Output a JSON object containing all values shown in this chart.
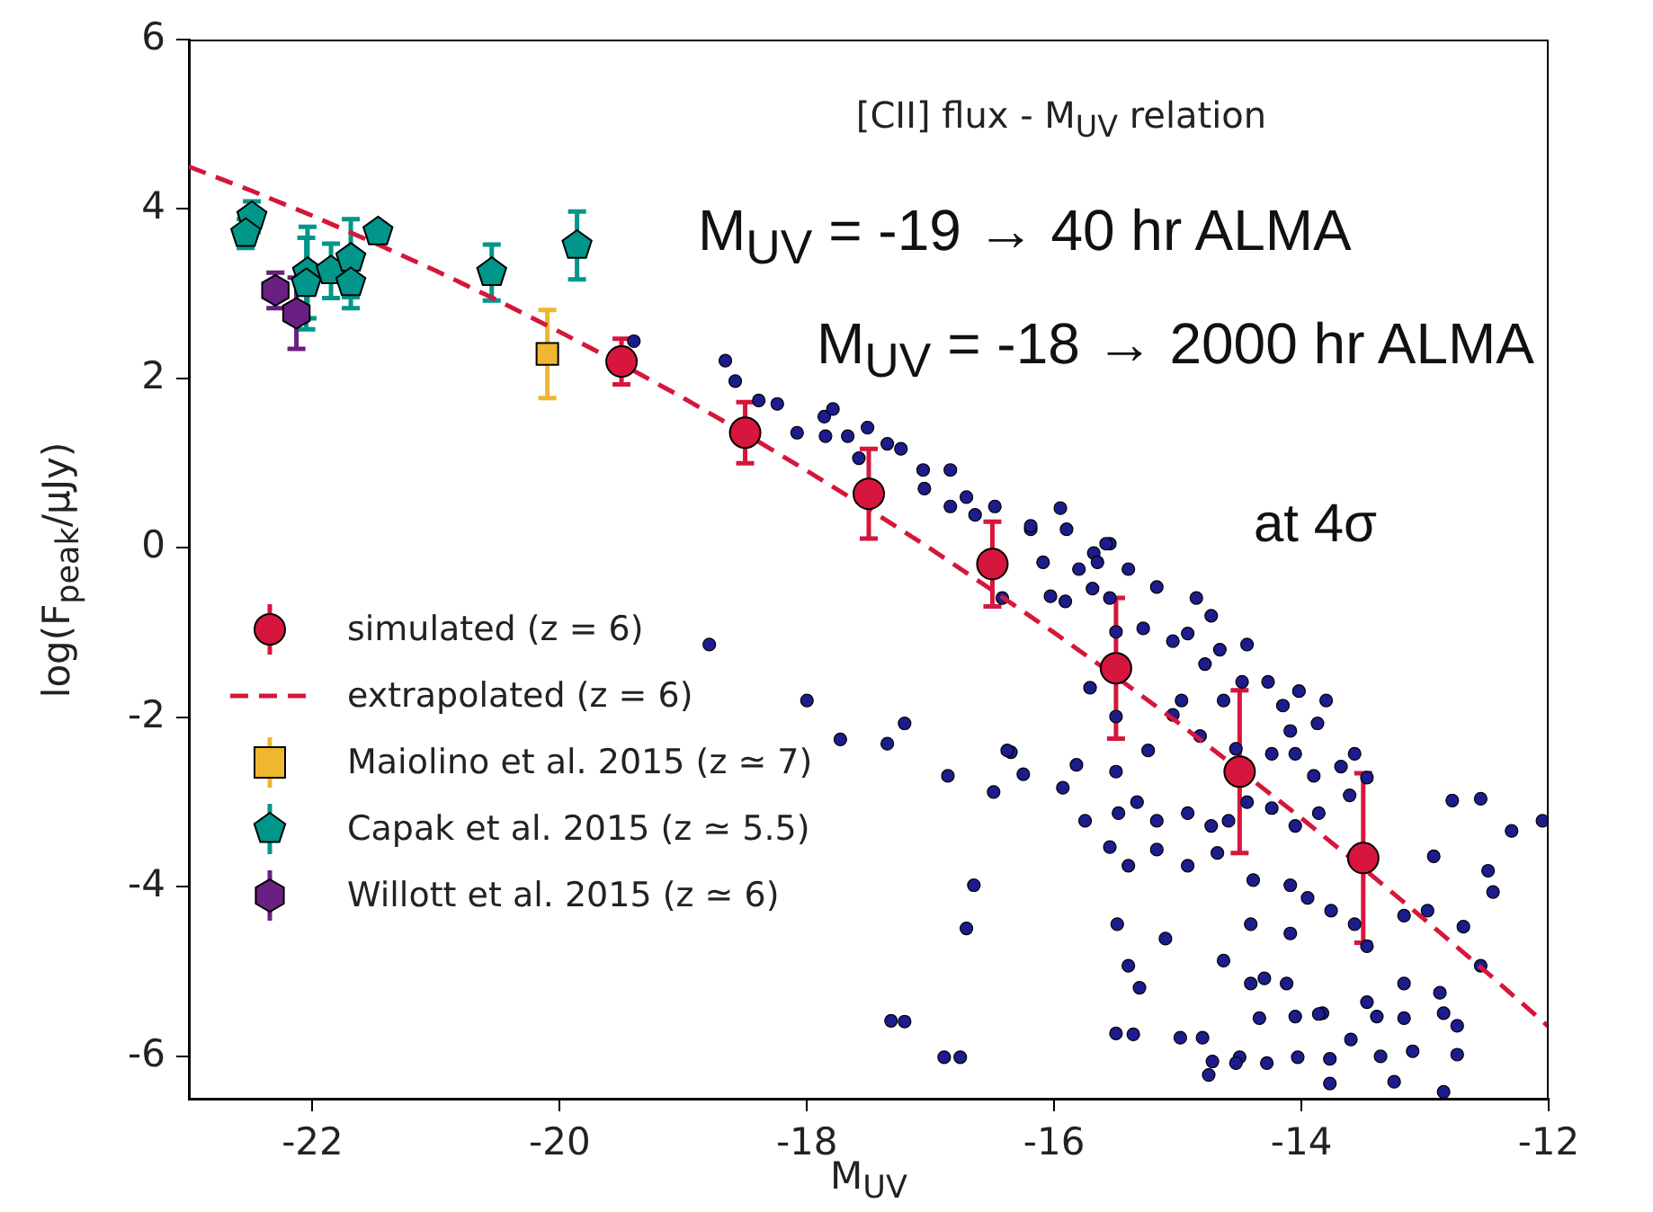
{
  "chart_data": {
    "type": "scatter",
    "xlabel": "M$_{UV}$",
    "ylabel": "log(F$_{peak}$/μJy)",
    "xlim": [
      -23,
      -12
    ],
    "xticks": [
      -22,
      -20,
      -18,
      -16,
      -14,
      -12
    ],
    "ylim": [
      -6.5,
      6
    ],
    "yticks": [
      -6,
      -4,
      -2,
      0,
      2,
      4,
      6
    ],
    "grid": false,
    "legend": "bottom left",
    "annotations": [
      "[CII] flux - M$_{UV}$ relation",
      "M$_{UV}$ = -19 → 40 hr ALMA",
      "M$_{UV}$ = -18 → 2000 hr ALMA",
      "at 4σ"
    ],
    "series": [
      {
        "name": "simulated (z = 6)",
        "color": "#d6163c",
        "marker": "circle",
        "x": [
          -19.5,
          -18.5,
          -17.5,
          -16.5,
          -15.5,
          -14.5,
          -13.5
        ],
        "values": [
          2.2,
          1.36,
          0.64,
          -0.19,
          -1.42,
          -2.64,
          -3.66
        ],
        "errors": [
          0.27,
          0.36,
          0.53,
          0.5,
          0.83,
          0.96,
          1.0
        ]
      },
      {
        "name": "extrapolated (z = 6)",
        "type": "line",
        "color": "#d6163c",
        "marker": "none",
        "line_style": "dashed",
        "x": [
          -23,
          -22.5,
          -22,
          -21.5,
          -21,
          -20.5,
          -20,
          -19.5,
          -19,
          -18.5,
          -18,
          -17.5,
          -17,
          -16.5,
          -16,
          -15.5,
          -15,
          -14.5,
          -14,
          -13.5,
          -13,
          -12.5,
          -12
        ],
        "values": [
          4.5,
          4.22,
          3.92,
          3.6,
          3.27,
          2.92,
          2.55,
          2.17,
          1.77,
          1.35,
          0.91,
          0.46,
          -0.01,
          -0.5,
          -1.0,
          -1.52,
          -2.06,
          -2.62,
          -3.19,
          -3.78,
          -4.39,
          -5.01,
          -5.65
        ]
      },
      {
        "name": "Maiolino et al. 2015 (z ≃ 7)",
        "color": "#efb630",
        "marker": "square",
        "x": [
          -20.1
        ],
        "values": [
          2.29
        ],
        "errors": [
          0.52
        ]
      },
      {
        "name": "Capak et al. 2015 (z ≃ 5.5)",
        "color": "#00968a",
        "x": [
          -22.49,
          -22.54,
          -22.04,
          -22.05,
          -21.85,
          -21.69,
          -21.69,
          -21.47,
          -20.55,
          -19.86
        ],
        "values": [
          3.91,
          3.71,
          3.25,
          3.12,
          3.27,
          3.42,
          3.13,
          3.73,
          3.25,
          3.57
        ],
        "errors": [
          0.18,
          0.17,
          0.54,
          0.54,
          0.32,
          0.46,
          0.3,
          0.06,
          0.33,
          0.4
        ]
      },
      {
        "name": "Willott et al. 2015 (z ≃ 6)",
        "color": "#6a1f82",
        "x": [
          -22.3,
          -22.13
        ],
        "values": [
          3.04,
          2.77
        ],
        "errors": [
          0.21,
          0.42
        ]
      },
      {
        "color": "#1c1c8c",
        "marker": "circle",
        "x": [
          -19.4,
          -18.66,
          -18.58,
          -18.39,
          -18.24,
          -18.08,
          -17.86,
          -17.79,
          -17.85,
          -17.67,
          -17.51,
          -17.58,
          -17.35,
          -17.24,
          -17.06,
          -17.05,
          -16.84,
          -16.71,
          -16.84,
          -16.64,
          -16.48,
          -16.19,
          -15.95,
          -15.9,
          -16.09,
          -15.8,
          -15.68,
          -15.55,
          -15.69,
          -15.4,
          -15.55,
          -15.91,
          -15.5,
          -16.42,
          -16.03,
          -18.79,
          -18.0,
          -17.73,
          -17.35,
          -17.21,
          -15.71,
          -15.5,
          -16.86,
          -16.49,
          -16.35,
          -16.25,
          -16.65,
          -16.71,
          -17.21,
          -16.76,
          -17.32,
          -16.89,
          -15.5,
          -14.98,
          -14.72,
          -14.75,
          -14.5,
          -14.28,
          -14.34,
          -14.03,
          -14.05,
          -13.83,
          -13.77,
          -13.77,
          -13.6,
          -13.39,
          -13.36,
          -13.25,
          -13.1,
          -12.85,
          -12.74,
          -12.74,
          -12.85,
          -16.19,
          -15.65,
          -15.58,
          -15.17,
          -14.85,
          -14.73,
          -15.04,
          -15.28,
          -14.92,
          -14.66,
          -14.44,
          -14.78,
          -14.48,
          -14.27,
          -14.15,
          -14.02,
          -13.8,
          -13.87,
          -14.09,
          -14.63,
          -14.97,
          -15.04,
          -14.82,
          -14.53,
          -14.24,
          -14.05,
          -13.9,
          -13.68,
          -13.57,
          -13.47,
          -13.61,
          -13.86,
          -14.05,
          -14.24,
          -14.44,
          -14.59,
          -14.73,
          -14.92,
          -15.17,
          -15.33,
          -15.48,
          -15.24,
          -15.5,
          -15.75,
          -15.82,
          -15.93,
          -15.55,
          -15.4,
          -15.17,
          -14.92,
          -14.68,
          -14.39,
          -14.09,
          -13.95,
          -13.76,
          -13.57,
          -13.47,
          -13.17,
          -12.98,
          -12.93,
          -12.78,
          -12.55,
          -12.3,
          -12.05,
          -12.49,
          -12.45,
          -12.69,
          -12.55,
          -12.88,
          -13.17,
          -13.17,
          -13.47,
          -13.86,
          -14.12,
          -14.41,
          -14.3,
          -14.63,
          -14.41,
          -14.09,
          -15.1,
          -15.31,
          -15.4,
          -15.49,
          -15.36,
          -14.8,
          -14.53,
          -16.38
        ],
        "values": [
          2.44,
          2.21,
          1.97,
          1.74,
          1.7,
          1.36,
          1.55,
          1.64,
          1.32,
          1.32,
          1.42,
          1.06,
          1.23,
          1.17,
          0.92,
          0.7,
          0.92,
          0.6,
          0.49,
          0.39,
          0.49,
          0.22,
          0.47,
          0.22,
          -0.17,
          -0.25,
          -0.06,
          0.05,
          -0.48,
          -0.25,
          -0.59,
          -0.63,
          -0.99,
          -0.59,
          -0.57,
          -1.14,
          -1.8,
          -2.26,
          -2.31,
          -2.07,
          -1.65,
          -1.99,
          -2.69,
          -2.88,
          -2.41,
          -2.67,
          -3.98,
          -4.49,
          -5.59,
          -6.01,
          -5.58,
          -6.01,
          -5.73,
          -5.78,
          -6.06,
          -6.22,
          -6.01,
          -6.08,
          -5.55,
          -6.01,
          -5.53,
          -5.49,
          -6.03,
          -6.32,
          -5.8,
          -5.53,
          -6.0,
          -6.3,
          -5.94,
          -5.49,
          -5.64,
          -5.98,
          -6.42,
          0.26,
          -0.17,
          0.05,
          -0.46,
          -0.59,
          -0.8,
          -1.1,
          -0.95,
          -1.01,
          -1.2,
          -1.14,
          -1.37,
          -1.58,
          -1.58,
          -1.86,
          -1.69,
          -1.8,
          -2.07,
          -2.16,
          -1.8,
          -1.8,
          -1.97,
          -2.22,
          -2.37,
          -2.43,
          -2.43,
          -2.69,
          -2.58,
          -2.43,
          -2.71,
          -2.92,
          -3.13,
          -3.28,
          -3.07,
          -3.0,
          -3.22,
          -3.28,
          -3.13,
          -3.22,
          -3.0,
          -3.13,
          -2.39,
          -2.64,
          -3.22,
          -2.56,
          -2.83,
          -3.53,
          -3.75,
          -3.56,
          -3.75,
          -3.6,
          -3.92,
          -3.98,
          -4.13,
          -4.28,
          -4.44,
          -4.7,
          -4.34,
          -4.28,
          -3.64,
          -2.98,
          -2.96,
          -3.34,
          -3.22,
          -3.81,
          -4.06,
          -4.47,
          -4.93,
          -5.25,
          -5.14,
          -5.55,
          -5.36,
          -5.5,
          -5.14,
          -5.14,
          -5.08,
          -4.87,
          -4.44,
          -4.55,
          -4.61,
          -5.19,
          -4.93,
          -4.44,
          -5.74,
          -5.78,
          -6.08,
          -2.39
        ]
      }
    ]
  }
}
